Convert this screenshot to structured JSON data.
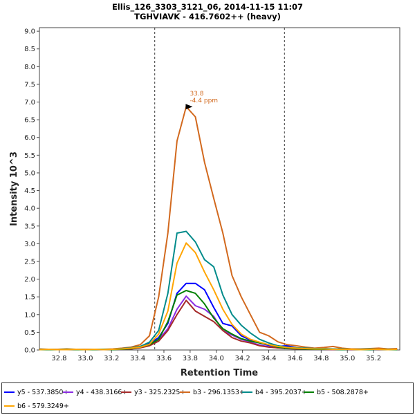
{
  "chart_data": {
    "type": "line",
    "title": "Ellis_126_3303_3121_06, 2014-11-15 11:07",
    "subtitle": "TGHVIAVK - 416.7602++ (heavy)",
    "xlabel": "Retention Time",
    "ylabel": "Intensity 10^3",
    "xlim": [
      32.65,
      35.4
    ],
    "ylim": [
      0,
      9.1
    ],
    "x_ticks": [
      "32.8",
      "33.0",
      "33.2",
      "33.4",
      "33.6",
      "33.8",
      "34.0",
      "34.2",
      "34.4",
      "34.6",
      "34.8",
      "35.0",
      "35.2"
    ],
    "y_ticks": [
      "0.0",
      "0.5",
      "1.0",
      "1.5",
      "2.0",
      "2.5",
      "3.0",
      "3.5",
      "4.0",
      "4.5",
      "5.0",
      "5.5",
      "6.0",
      "6.5",
      "7.0",
      "7.5",
      "8.0",
      "8.5",
      "9.0"
    ],
    "grid": false,
    "legend_position": "bottom",
    "peak_boundaries": [
      33.53,
      34.52
    ],
    "x": [
      32.65,
      32.72,
      32.79,
      32.86,
      32.93,
      33.0,
      33.07,
      33.14,
      33.21,
      33.28,
      33.35,
      33.42,
      33.49,
      33.56,
      33.63,
      33.7,
      33.77,
      33.84,
      33.91,
      33.98,
      34.05,
      34.12,
      34.19,
      34.26,
      34.33,
      34.4,
      34.47,
      34.54,
      34.61,
      34.68,
      34.75,
      34.82,
      34.89,
      34.96,
      35.03,
      35.1,
      35.17,
      35.24,
      35.31,
      35.38
    ],
    "series": [
      {
        "name": "y5 - 537.3850+",
        "color": "#0000ff",
        "values": [
          0.02,
          0.02,
          0.01,
          0.02,
          0.01,
          0.02,
          0.01,
          0.01,
          0.02,
          0.03,
          0.05,
          0.1,
          0.18,
          0.35,
          0.75,
          1.6,
          1.88,
          1.88,
          1.7,
          1.2,
          0.75,
          0.68,
          0.4,
          0.28,
          0.2,
          0.13,
          0.1,
          0.12,
          0.06,
          0.04,
          0.03,
          0.04,
          0.02,
          0.03,
          0.02,
          0.02,
          0.01,
          0.02,
          0.02,
          0.02
        ]
      },
      {
        "name": "y4 - 438.3166+",
        "color": "#8a2be2",
        "values": [
          0.01,
          0.01,
          0.01,
          0.01,
          0.02,
          0.01,
          0.01,
          0.02,
          0.01,
          0.02,
          0.03,
          0.07,
          0.14,
          0.3,
          0.6,
          1.15,
          1.52,
          1.25,
          1.15,
          0.95,
          0.55,
          0.42,
          0.3,
          0.22,
          0.14,
          0.09,
          0.06,
          0.05,
          0.04,
          0.03,
          0.02,
          0.03,
          0.02,
          0.02,
          0.01,
          0.02,
          0.02,
          0.01,
          0.02,
          0.01
        ]
      },
      {
        "name": "y3 - 325.2325+",
        "color": "#a52a2a",
        "values": [
          0.01,
          0.01,
          0.02,
          0.01,
          0.01,
          0.01,
          0.02,
          0.01,
          0.01,
          0.02,
          0.03,
          0.06,
          0.12,
          0.25,
          0.55,
          1.0,
          1.4,
          1.1,
          0.95,
          0.8,
          0.55,
          0.35,
          0.25,
          0.2,
          0.12,
          0.08,
          0.06,
          0.04,
          0.03,
          0.03,
          0.02,
          0.02,
          0.01,
          0.02,
          0.01,
          0.01,
          0.02,
          0.01,
          0.01,
          0.01
        ]
      },
      {
        "name": "b3 - 296.1353+",
        "color": "#d2691e",
        "values": [
          0.03,
          0.02,
          0.02,
          0.03,
          0.02,
          0.02,
          0.02,
          0.02,
          0.03,
          0.05,
          0.08,
          0.15,
          0.4,
          1.5,
          3.3,
          5.9,
          6.87,
          6.58,
          5.3,
          4.28,
          3.3,
          2.1,
          1.5,
          1.0,
          0.5,
          0.4,
          0.23,
          0.15,
          0.12,
          0.08,
          0.05,
          0.07,
          0.1,
          0.05,
          0.03,
          0.03,
          0.04,
          0.05,
          0.03,
          0.04
        ]
      },
      {
        "name": "b4 - 395.2037+",
        "color": "#008b8b",
        "values": [
          0.02,
          0.02,
          0.01,
          0.02,
          0.02,
          0.01,
          0.02,
          0.02,
          0.02,
          0.04,
          0.06,
          0.1,
          0.22,
          0.55,
          1.6,
          3.3,
          3.35,
          3.05,
          2.55,
          2.35,
          1.55,
          1.0,
          0.7,
          0.48,
          0.3,
          0.2,
          0.12,
          0.08,
          0.06,
          0.05,
          0.04,
          0.04,
          0.03,
          0.03,
          0.02,
          0.02,
          0.03,
          0.02,
          0.02,
          0.02
        ]
      },
      {
        "name": "b5 - 508.2878+",
        "color": "#008000",
        "values": [
          0.01,
          0.01,
          0.01,
          0.02,
          0.01,
          0.01,
          0.01,
          0.02,
          0.01,
          0.02,
          0.04,
          0.08,
          0.15,
          0.3,
          0.8,
          1.55,
          1.68,
          1.6,
          1.3,
          0.9,
          0.6,
          0.45,
          0.32,
          0.25,
          0.2,
          0.15,
          0.08,
          0.05,
          0.04,
          0.03,
          0.02,
          0.02,
          0.02,
          0.01,
          0.02,
          0.01,
          0.01,
          0.02,
          0.01,
          0.01
        ]
      },
      {
        "name": "b6 - 579.3249+",
        "color": "#ffa500",
        "values": [
          0.01,
          0.02,
          0.01,
          0.01,
          0.02,
          0.01,
          0.02,
          0.01,
          0.02,
          0.03,
          0.05,
          0.08,
          0.16,
          0.45,
          1.1,
          2.45,
          3.02,
          2.75,
          2.2,
          1.7,
          1.15,
          0.72,
          0.45,
          0.3,
          0.22,
          0.15,
          0.1,
          0.07,
          0.05,
          0.04,
          0.03,
          0.03,
          0.02,
          0.02,
          0.02,
          0.01,
          0.02,
          0.02,
          0.01,
          0.02
        ]
      }
    ],
    "annotations": [
      {
        "x": 33.84,
        "y": 6.87,
        "lines": [
          "33.8",
          "-4.4 ppm"
        ],
        "color": "#d2691e"
      }
    ]
  }
}
